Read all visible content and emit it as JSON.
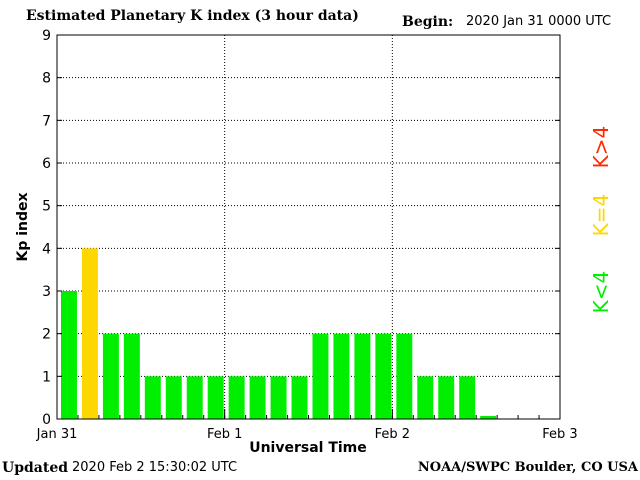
{
  "header": {
    "title": "Estimated Planetary K index (3 hour data)",
    "begin_label": "Begin:",
    "begin_value": "2020 Jan 31 0000 UTC"
  },
  "footer": {
    "updated_label": "Updated",
    "updated_value": "2020 Feb  2 15:30:02 UTC",
    "credit": "NOAA/SWPC Boulder, CO USA"
  },
  "legend": [
    {
      "label": "K>4",
      "color": "#ff2a00"
    },
    {
      "label": "K=4",
      "color": "#ffd700"
    },
    {
      "label": "K<4",
      "color": "#00ee00"
    }
  ],
  "chart_data": {
    "type": "bar",
    "title": "Estimated Planetary K index (3 hour data)",
    "xlabel": "Universal Time",
    "ylabel": "Kp index",
    "ylim": [
      0,
      9
    ],
    "yticks": [
      "0",
      "1",
      "2",
      "3",
      "4",
      "5",
      "6",
      "7",
      "8",
      "9"
    ],
    "xtick_labels": [
      "Jan 31",
      "Feb 1",
      "Feb 2",
      "Feb 3"
    ],
    "slots_total": 24,
    "grid": true,
    "colors": {
      "below": "#00ee00",
      "equal": "#ffd700",
      "above": "#ff2a00"
    },
    "values": [
      3,
      4,
      2,
      2,
      1,
      1,
      1,
      1,
      1,
      1,
      1,
      1,
      2,
      2,
      2,
      2,
      2,
      1,
      1,
      1,
      0.07
    ]
  }
}
